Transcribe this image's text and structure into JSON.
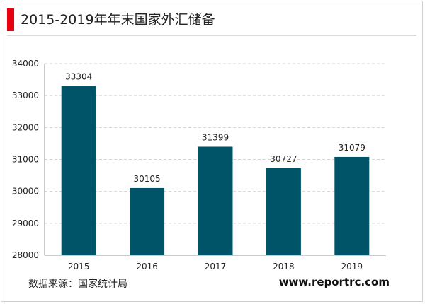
{
  "header": {
    "title": "2015-2019年年末国家外汇储备"
  },
  "footer": {
    "source": "数据来源：国家统计局",
    "website": "www.reportrc.com"
  },
  "colors": {
    "bar": "#005468",
    "accent": "#e60012",
    "grid": "#d4d4d4"
  },
  "chart_data": {
    "type": "bar",
    "categories": [
      "2015",
      "2016",
      "2017",
      "2018",
      "2019"
    ],
    "values": [
      33304,
      30105,
      31399,
      30727,
      31079
    ],
    "ylim": [
      28000,
      34000
    ],
    "yticks": [
      28000,
      29000,
      30000,
      31000,
      32000,
      33000,
      34000
    ],
    "grid": true,
    "data_labels": true
  }
}
